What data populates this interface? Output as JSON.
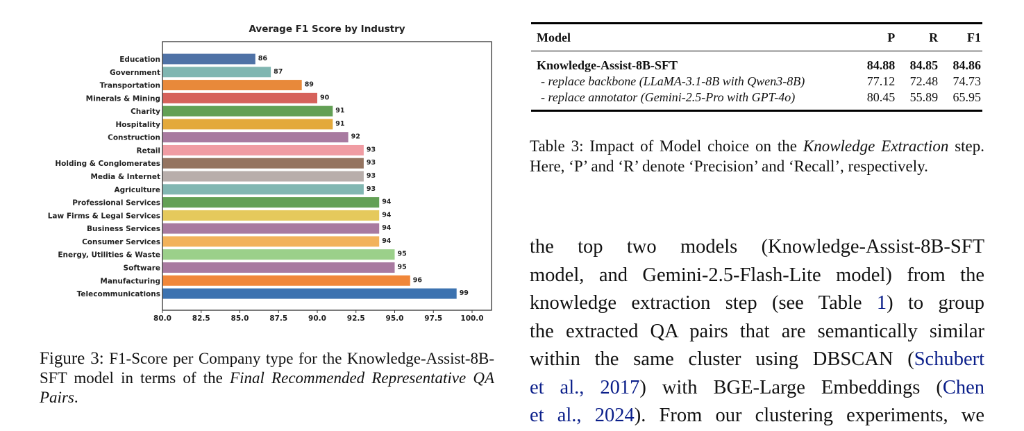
{
  "chart_data": {
    "type": "bar",
    "orientation": "horizontal",
    "title": "Average F1 Score by Industry",
    "xlabel": "",
    "ylabel": "",
    "xlim": [
      80,
      102
    ],
    "xticks": [
      "80.0",
      "82.5",
      "85.0",
      "87.5",
      "90.0",
      "92.5",
      "95.0",
      "97.5",
      "100.0"
    ],
    "categories": [
      "Education",
      "Government",
      "Transportation",
      "Minerals & Mining",
      "Charity",
      "Hospitality",
      "Construction",
      "Retail",
      "Holding & Conglomerates",
      "Media & Internet",
      "Agriculture",
      "Professional Services",
      "Law Firms & Legal Services",
      "Business Services",
      "Consumer Services",
      "Energy, Utilities & Waste",
      "Software",
      "Manufacturing",
      "Telecommunications"
    ],
    "values": [
      86,
      87,
      89,
      90,
      91,
      91,
      92,
      93,
      93,
      93,
      93,
      94,
      94,
      94,
      94,
      95,
      95,
      96,
      99
    ],
    "colors": [
      "#4f72a6",
      "#80b6b1",
      "#e8893a",
      "#d6625b",
      "#63a055",
      "#e3a93b",
      "#a87aa0",
      "#f09ca3",
      "#957460",
      "#b8aeab",
      "#82b7b2",
      "#63a055",
      "#e5c95c",
      "#a87aa0",
      "#f2b25b",
      "#9bd08a",
      "#a87aa0",
      "#f0873a",
      "#3c72b0"
    ],
    "grid": false
  },
  "figure_caption": {
    "label": "Figure 3:",
    "text": " F1-Score per Company type for the Knowledge-Assist-8B-SFT model in terms of the ",
    "italic": "Final Recommended Representative QA Pairs",
    "end": "."
  },
  "table": {
    "headers": [
      "Model",
      "P",
      "R",
      "F1"
    ],
    "rows": [
      [
        "Knowledge-Assist-8B-SFT",
        "84.88",
        "84.85",
        "84.86"
      ],
      [
        "- replace backbone (LLaMA-3.1-8B with Qwen3-8B)",
        "77.12",
        "72.48",
        "74.73"
      ],
      [
        "- replace annotator (Gemini-2.5-Pro with GPT-4o)",
        "80.45",
        "55.89",
        "65.95"
      ]
    ]
  },
  "table_caption": {
    "label": "Table 3:",
    "text1": " Impact of Model choice on the ",
    "italic": "Knowledge Extraction",
    "text2": " step. Here, ‘P’ and ‘R’ denote ‘Precision’ and ‘Recall’, respectively."
  },
  "body": {
    "l1": "the top two models (Knowledge-Assist-8B-SFT",
    "l2": "model, and Gemini-2.5-Flash-Lite model) from the",
    "l3a": "knowledge extraction step (see Table ",
    "l3link": "1",
    "l3b": ") to group",
    "l4": "the extracted QA pairs that are semantically similar",
    "l5a": "within the same cluster using DBSCAN (",
    "l5link": "Schubert",
    "l6link1": "et al.,",
    "l6sep": " ",
    "l6link2": "2017",
    "l6b": ") with BGE-Large Embeddings (",
    "l6link3": "Chen",
    "l7link1": "et al.,",
    "l7sep": " ",
    "l7link2": "2024",
    "l7b": "). From our clustering experiments, we"
  }
}
